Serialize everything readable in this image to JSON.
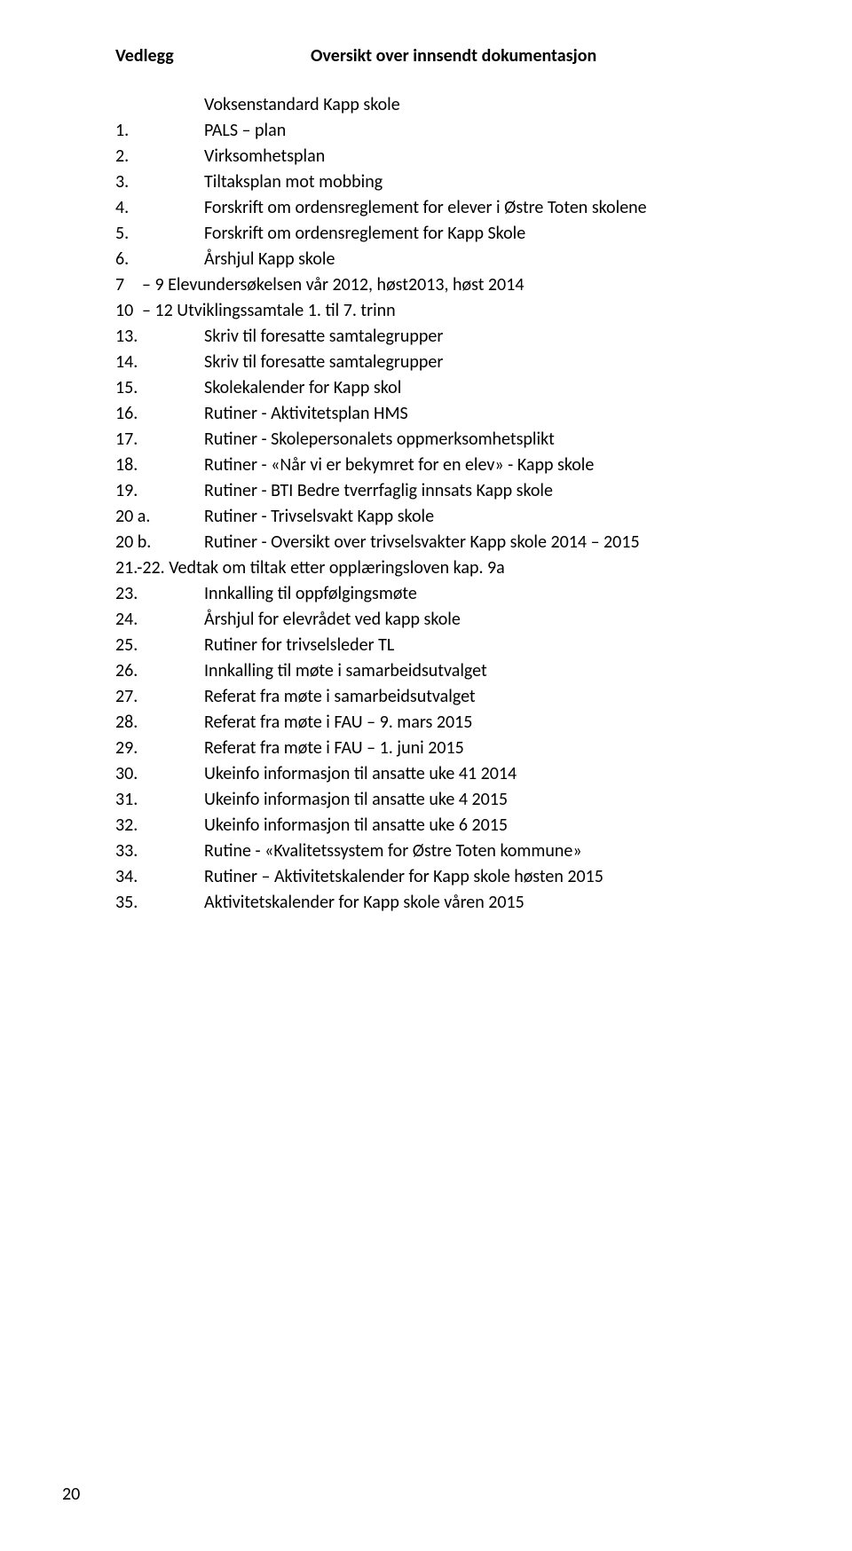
{
  "header": {
    "left": "Vedlegg",
    "right": "Oversikt over innsendt dokumentasjon"
  },
  "subtitle": "Voksenstandard Kapp skole",
  "items": [
    {
      "n": "1.",
      "t": "PALS – plan"
    },
    {
      "n": "2.",
      "t": "Virksomhetsplan"
    },
    {
      "n": "3.",
      "t": "Tiltaksplan mot mobbing"
    },
    {
      "n": "4.",
      "t": "Forskrift om ordensreglement for elever i Østre Toten skolene"
    },
    {
      "n": "5.",
      "t": "Forskrift om ordensreglement for Kapp Skole"
    },
    {
      "n": "6.",
      "t": "Årshjul Kapp skole"
    },
    {
      "n": "7",
      "t": "– 9 Elevundersøkelsen vår 2012, høst2013, høst 2014",
      "wide": true
    },
    {
      "n": "10",
      "t": "– 12 Utviklingssamtale 1. til 7. trinn",
      "wide": true
    },
    {
      "n": "13.",
      "t": "Skriv til foresatte samtalegrupper"
    },
    {
      "n": "14.",
      "t": "Skriv til foresatte samtalegrupper"
    },
    {
      "n": "15.",
      "t": "Skolekalender for Kapp skol"
    },
    {
      "n": "16.",
      "t": "Rutiner - Aktivitetsplan HMS"
    },
    {
      "n": "17.",
      "t": "Rutiner - Skolepersonalets oppmerksomhetsplikt"
    },
    {
      "n": "18.",
      "t": "Rutiner - «Når vi er bekymret for en elev» - Kapp skole"
    },
    {
      "n": "19.",
      "t": "Rutiner - BTI Bedre tverrfaglig innsats Kapp skole"
    },
    {
      "n": "20 a.",
      "t": "Rutiner - Trivselsvakt Kapp skole"
    },
    {
      "n": "20 b.",
      "t": "Rutiner - Oversikt over trivselsvakter Kapp skole 2014 – 2015"
    },
    {
      "n": "21.-22.",
      "t": " Vedtak om tiltak etter opplæringsloven kap. 9a",
      "inline": true
    },
    {
      "n": "23.",
      "t": "Innkalling til oppfølgingsmøte"
    },
    {
      "n": "24.",
      "t": "Årshjul for elevrådet ved kapp skole"
    },
    {
      "n": "25.",
      "t": "Rutiner for trivselsleder TL"
    },
    {
      "n": "26.",
      "t": "Innkalling til møte i samarbeidsutvalget"
    },
    {
      "n": "27.",
      "t": "Referat fra møte i samarbeidsutvalget"
    },
    {
      "n": "28.",
      "t": "Referat fra møte i FAU – 9. mars 2015"
    },
    {
      "n": "29.",
      "t": "Referat fra møte i FAU – 1. juni 2015"
    },
    {
      "n": "30.",
      "t": "Ukeinfo informasjon til ansatte uke 41 2014"
    },
    {
      "n": "31.",
      "t": "Ukeinfo informasjon til ansatte uke 4 2015"
    },
    {
      "n": "32.",
      "t": "Ukeinfo informasjon til ansatte uke 6 2015"
    },
    {
      "n": "33.",
      "t": "Rutine - «Kvalitetssystem for Østre Toten kommune»"
    },
    {
      "n": "34.",
      "t": "Rutiner – Aktivitetskalender for Kapp skole høsten 2015"
    },
    {
      "n": "35.",
      "t": "Aktivitetskalender for Kapp skole våren 2015"
    }
  ],
  "pagenum": "20"
}
